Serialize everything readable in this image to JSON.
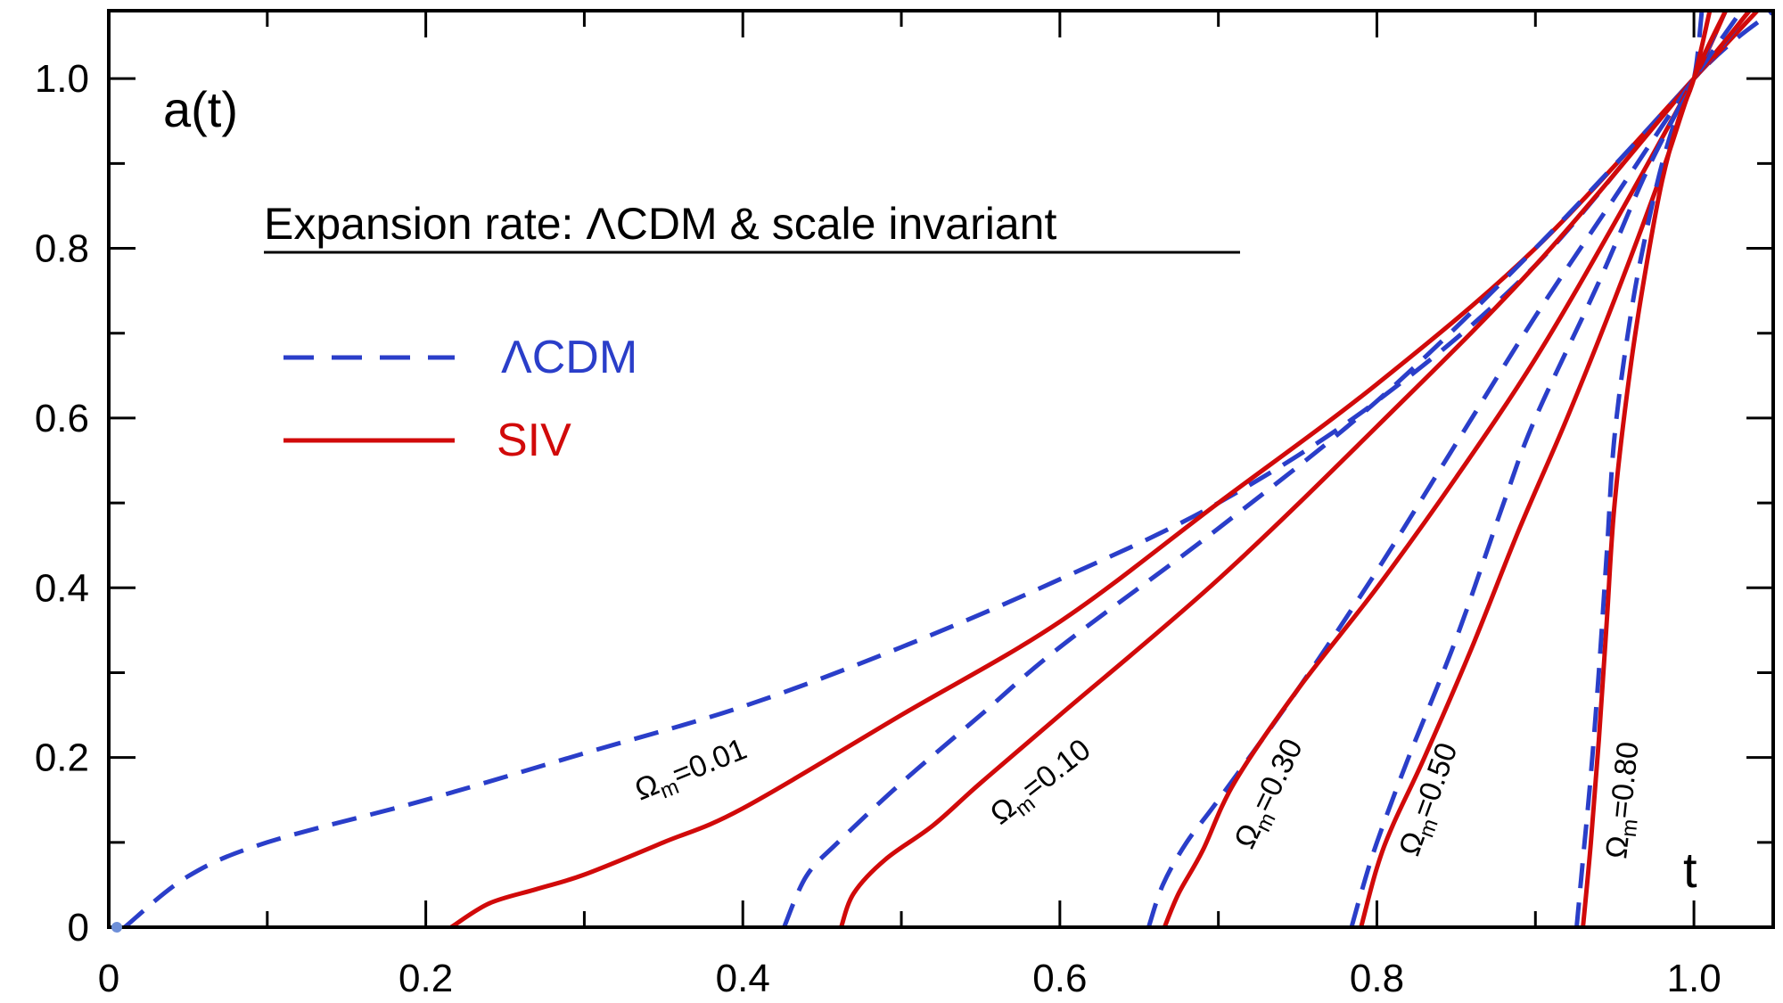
{
  "chart_data": {
    "type": "line",
    "title": "Expansion rate:  ΛCDM & scale invariant",
    "ylabel": "a(t)",
    "xlabel": "t",
    "xlim": [
      0,
      1.05
    ],
    "ylim": [
      0,
      1.08
    ],
    "x_ticks": [
      0,
      0.2,
      0.4,
      0.6,
      0.8,
      1.0
    ],
    "x_tick_labels": [
      "0",
      "0.2",
      "0.4",
      "0.6",
      "0.8",
      "1.0"
    ],
    "y_ticks": [
      0,
      0.2,
      0.4,
      0.6,
      0.8,
      1.0
    ],
    "y_tick_labels": [
      "0",
      "0.2",
      "0.4",
      "0.6",
      "0.8",
      "1.0"
    ],
    "grid": false,
    "legend_position": "upper-left",
    "legend": [
      {
        "label": "ΛCDM",
        "style": "dashed",
        "color": "#2a3ec9"
      },
      {
        "label": "SIV",
        "style": "solid",
        "color": "#d10a0a"
      }
    ],
    "annotations": [
      {
        "omega_label": "Ω",
        "sub": "m",
        "value": "=0.01"
      },
      {
        "omega_label": "Ω",
        "sub": "m",
        "value": "=0.10"
      },
      {
        "omega_label": "Ω",
        "sub": "m",
        "value": "=0.30"
      },
      {
        "omega_label": "Ω",
        "sub": "m",
        "value": "=0.50"
      },
      {
        "omega_label": "Ω",
        "sub": "m",
        "value": "=0.80"
      }
    ],
    "series": [
      {
        "name": "ΛCDM Ωm=0.01",
        "style": "dashed",
        "color": "#2a3ec9",
        "x": [
          0.01,
          0.05,
          0.1,
          0.2,
          0.3,
          0.4,
          0.5,
          0.6,
          0.7,
          0.8,
          0.9,
          1.0,
          1.05
        ],
        "y": [
          0.0,
          0.06,
          0.1,
          0.15,
          0.205,
          0.26,
          0.33,
          0.41,
          0.5,
          0.62,
          0.78,
          1.0,
          1.08
        ]
      },
      {
        "name": "SIV Ωm=0.01",
        "style": "solid",
        "color": "#d10a0a",
        "x": [
          0.216,
          0.24,
          0.27,
          0.3,
          0.35,
          0.4,
          0.5,
          0.6,
          0.7,
          0.8,
          0.9,
          1.0,
          1.04
        ],
        "y": [
          0.0,
          0.028,
          0.045,
          0.062,
          0.1,
          0.14,
          0.25,
          0.36,
          0.5,
          0.64,
          0.8,
          1.0,
          1.08
        ]
      },
      {
        "name": "ΛCDM Ωm=0.10",
        "style": "dashed",
        "color": "#2a3ec9",
        "x": [
          0.426,
          0.44,
          0.46,
          0.5,
          0.55,
          0.6,
          0.7,
          0.8,
          0.9,
          1.0,
          1.035
        ],
        "y": [
          0.0,
          0.06,
          0.1,
          0.17,
          0.25,
          0.33,
          0.47,
          0.62,
          0.8,
          1.0,
          1.08
        ]
      },
      {
        "name": "SIV Ωm=0.10",
        "style": "solid",
        "color": "#d10a0a",
        "x": [
          0.462,
          0.47,
          0.49,
          0.52,
          0.55,
          0.6,
          0.7,
          0.8,
          0.9,
          1.0,
          1.035
        ],
        "y": [
          0.0,
          0.04,
          0.08,
          0.12,
          0.17,
          0.25,
          0.41,
          0.59,
          0.78,
          1.0,
          1.08
        ]
      },
      {
        "name": "ΛCDM Ωm=0.30",
        "style": "dashed",
        "color": "#2a3ec9",
        "x": [
          0.656,
          0.665,
          0.68,
          0.7,
          0.75,
          0.8,
          0.85,
          0.9,
          0.95,
          1.0,
          1.03
        ],
        "y": [
          0.0,
          0.05,
          0.1,
          0.15,
          0.28,
          0.42,
          0.57,
          0.72,
          0.86,
          1.0,
          1.08
        ]
      },
      {
        "name": "SIV Ωm=0.30",
        "style": "solid",
        "color": "#d10a0a",
        "x": [
          0.666,
          0.675,
          0.69,
          0.71,
          0.75,
          0.8,
          0.85,
          0.9,
          0.95,
          1.0,
          1.02
        ],
        "y": [
          0.0,
          0.04,
          0.09,
          0.17,
          0.28,
          0.4,
          0.53,
          0.67,
          0.83,
          1.0,
          1.08
        ]
      },
      {
        "name": "ΛCDM Ωm=0.50",
        "style": "dashed",
        "color": "#2a3ec9",
        "x": [
          0.784,
          0.79,
          0.8,
          0.82,
          0.85,
          0.88,
          0.9,
          0.94,
          0.97,
          1.0,
          1.02
        ],
        "y": [
          0.0,
          0.04,
          0.1,
          0.2,
          0.34,
          0.5,
          0.6,
          0.76,
          0.89,
          1.0,
          1.08
        ]
      },
      {
        "name": "SIV Ωm=0.50",
        "style": "solid",
        "color": "#d10a0a",
        "x": [
          0.79,
          0.8,
          0.81,
          0.83,
          0.86,
          0.89,
          0.92,
          0.95,
          0.98,
          1.0,
          1.02
        ],
        "y": [
          0.0,
          0.07,
          0.12,
          0.2,
          0.33,
          0.47,
          0.6,
          0.74,
          0.89,
          1.0,
          1.08
        ]
      },
      {
        "name": "ΛCDM Ωm=0.80",
        "style": "dashed",
        "color": "#2a3ec9",
        "x": [
          0.926,
          0.93,
          0.935,
          0.94,
          0.945,
          0.95,
          0.96,
          0.97,
          0.98,
          0.99,
          1.0,
          1.005
        ],
        "y": [
          0.0,
          0.08,
          0.18,
          0.3,
          0.44,
          0.58,
          0.72,
          0.82,
          0.9,
          0.96,
          1.0,
          1.08
        ]
      },
      {
        "name": "SIV Ωm=0.80",
        "style": "solid",
        "color": "#d10a0a",
        "x": [
          0.93,
          0.935,
          0.94,
          0.945,
          0.95,
          0.96,
          0.97,
          0.98,
          0.99,
          1.0,
          1.01
        ],
        "y": [
          0.0,
          0.1,
          0.22,
          0.36,
          0.5,
          0.66,
          0.78,
          0.88,
          0.95,
          1.0,
          1.08
        ]
      }
    ]
  }
}
